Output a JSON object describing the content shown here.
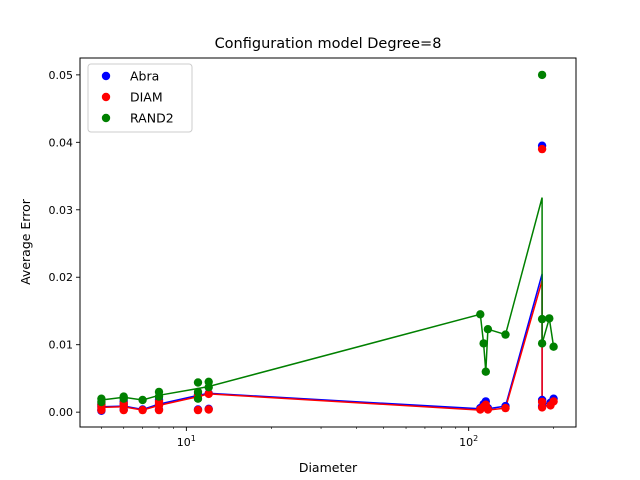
{
  "chart_data": {
    "type": "scatter",
    "title": "Configuration model Degree=8",
    "xlabel": "Diameter",
    "ylabel": "Average Error",
    "xscale": "log",
    "xlim": [
      4.2,
      240
    ],
    "ylim": [
      -0.0022,
      0.0525
    ],
    "x_ticks": [
      {
        "value": 10,
        "label": "10^1"
      },
      {
        "value": 100,
        "label": "10^2"
      }
    ],
    "y_ticks": [
      0.0,
      0.01,
      0.02,
      0.03,
      0.04,
      0.05
    ],
    "y_tick_labels": [
      "0.00",
      "0.01",
      "0.02",
      "0.03",
      "0.04",
      "0.05"
    ],
    "grid": false,
    "legend_position": "top-left",
    "series": [
      {
        "name": "Abra",
        "color": "#0000ff",
        "points": [
          [
            5,
            0.0012
          ],
          [
            5,
            0.0009
          ],
          [
            5,
            0.0004
          ],
          [
            5,
            0.0002
          ],
          [
            6,
            0.0016
          ],
          [
            6,
            0.0011
          ],
          [
            6,
            0.0004
          ],
          [
            7,
            0.0004
          ],
          [
            8,
            0.0018
          ],
          [
            8,
            0.0012
          ],
          [
            8,
            0.0004
          ],
          [
            11,
            0.0026
          ],
          [
            11,
            0.0004
          ],
          [
            12,
            0.0028
          ],
          [
            12,
            0.0005
          ],
          [
            110,
            0.0006
          ],
          [
            113,
            0.0012
          ],
          [
            115,
            0.0016
          ],
          [
            117,
            0.0006
          ],
          [
            135,
            0.0009
          ],
          [
            182,
            0.0395
          ],
          [
            182,
            0.0018
          ],
          [
            182,
            0.0009
          ],
          [
            195,
            0.0014
          ],
          [
            200,
            0.002
          ]
        ],
        "line": [
          [
            5,
            0.0008
          ],
          [
            6,
            0.0009
          ],
          [
            7,
            0.0004
          ],
          [
            8,
            0.0012
          ],
          [
            11,
            0.0025
          ],
          [
            12,
            0.0028
          ],
          [
            110,
            0.0005
          ],
          [
            113,
            0.001
          ],
          [
            117,
            0.0005
          ],
          [
            135,
            0.0009
          ],
          [
            182,
            0.0205
          ],
          [
            182,
            0.0012
          ],
          [
            195,
            0.0013
          ],
          [
            200,
            0.0018
          ]
        ]
      },
      {
        "name": "DIAM",
        "color": "#ff0000",
        "points": [
          [
            5,
            0.0011
          ],
          [
            5,
            0.0007
          ],
          [
            5,
            0.0003
          ],
          [
            6,
            0.0013
          ],
          [
            6,
            0.0009
          ],
          [
            6,
            0.0003
          ],
          [
            7,
            0.0003
          ],
          [
            8,
            0.0015
          ],
          [
            8,
            0.001
          ],
          [
            8,
            0.0003
          ],
          [
            11,
            0.0024
          ],
          [
            11,
            0.0003
          ],
          [
            12,
            0.0027
          ],
          [
            12,
            0.0004
          ],
          [
            110,
            0.0004
          ],
          [
            113,
            0.0008
          ],
          [
            115,
            0.0011
          ],
          [
            117,
            0.0004
          ],
          [
            135,
            0.0006
          ],
          [
            182,
            0.039
          ],
          [
            182,
            0.0015
          ],
          [
            182,
            0.0007
          ],
          [
            195,
            0.001
          ],
          [
            200,
            0.0016
          ]
        ],
        "line": [
          [
            5,
            0.0007
          ],
          [
            6,
            0.0008
          ],
          [
            7,
            0.0003
          ],
          [
            8,
            0.001
          ],
          [
            11,
            0.0023
          ],
          [
            12,
            0.0027
          ],
          [
            110,
            0.0003
          ],
          [
            113,
            0.0007
          ],
          [
            117,
            0.0003
          ],
          [
            135,
            0.0006
          ],
          [
            182,
            0.0195
          ],
          [
            182,
            0.0009
          ],
          [
            195,
            0.001
          ],
          [
            200,
            0.0015
          ]
        ]
      },
      {
        "name": "RAND2",
        "color": "#008000",
        "points": [
          [
            5,
            0.002
          ],
          [
            5,
            0.0015
          ],
          [
            6,
            0.0023
          ],
          [
            6,
            0.002
          ],
          [
            7,
            0.0018
          ],
          [
            8,
            0.003
          ],
          [
            8,
            0.0023
          ],
          [
            11,
            0.0044
          ],
          [
            11,
            0.003
          ],
          [
            11,
            0.002
          ],
          [
            12,
            0.0045
          ],
          [
            12,
            0.0037
          ],
          [
            110,
            0.0145
          ],
          [
            113,
            0.0102
          ],
          [
            115,
            0.006
          ],
          [
            117,
            0.0123
          ],
          [
            135,
            0.0115
          ],
          [
            182,
            0.05
          ],
          [
            182,
            0.0138
          ],
          [
            182,
            0.0102
          ],
          [
            193,
            0.0139
          ],
          [
            200,
            0.0097
          ]
        ],
        "line": [
          [
            5,
            0.0018
          ],
          [
            6,
            0.0022
          ],
          [
            7,
            0.0018
          ],
          [
            8,
            0.0025
          ],
          [
            11,
            0.0035
          ],
          [
            12,
            0.0038
          ],
          [
            110,
            0.0145
          ],
          [
            113,
            0.0102
          ],
          [
            115,
            0.006
          ],
          [
            117,
            0.0123
          ],
          [
            135,
            0.0115
          ],
          [
            182,
            0.0318
          ],
          [
            182,
            0.0138
          ],
          [
            182,
            0.0102
          ],
          [
            193,
            0.0139
          ],
          [
            200,
            0.0097
          ]
        ]
      }
    ]
  }
}
